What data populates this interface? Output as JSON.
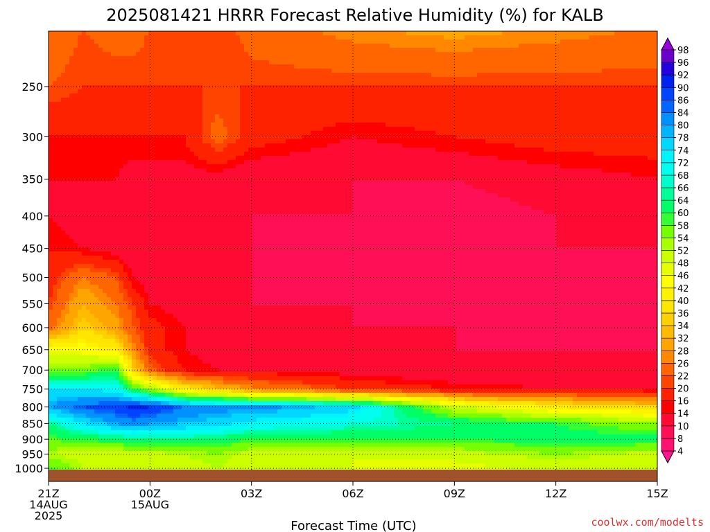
{
  "title": "2025081421 HRRR Forecast Relative Humidity (%) for KALB",
  "credit": "coolwx.com/modelts",
  "colors": {
    "credit": "#e2312d",
    "ground": "#a0522d"
  },
  "chart_data": {
    "type": "heatmap",
    "title": "2025081421 HRRR Forecast Relative Humidity (%) for KALB",
    "xlabel": "Forecast Time (UTC)",
    "ylabel": "",
    "y_scale": "log-pressure",
    "y_ticks": [
      250,
      300,
      350,
      400,
      450,
      500,
      550,
      600,
      650,
      700,
      750,
      800,
      850,
      900,
      950,
      1000
    ],
    "x_ticks": [
      {
        "hour": 0,
        "lines": [
          "21Z",
          "14AUG",
          "2025"
        ]
      },
      {
        "hour": 3,
        "lines": [
          "00Z",
          "15AUG"
        ]
      },
      {
        "hour": 6,
        "lines": [
          "03Z"
        ]
      },
      {
        "hour": 9,
        "lines": [
          "06Z"
        ]
      },
      {
        "hour": 12,
        "lines": [
          "09Z"
        ]
      },
      {
        "hour": 15,
        "lines": [
          "12Z"
        ]
      },
      {
        "hour": 18,
        "lines": [
          "15Z"
        ]
      }
    ],
    "grid": true,
    "legend": "colorbar-right",
    "colorbar_levels": [
      4,
      8,
      10,
      14,
      16,
      20,
      22,
      26,
      28,
      32,
      34,
      36,
      40,
      42,
      46,
      48,
      52,
      54,
      58,
      60,
      64,
      66,
      68,
      72,
      74,
      78,
      80,
      84,
      86,
      90,
      92,
      96,
      98
    ],
    "colorbar_colors": [
      "#ff1493",
      "#ff1170",
      "#ff0f55",
      "#ff0a33",
      "#ff0000",
      "#ff2200",
      "#ff4400",
      "#ff6600",
      "#ff8800",
      "#ffa500",
      "#ffbb00",
      "#ffd000",
      "#ffe600",
      "#fff200",
      "#ffff00",
      "#e6ff00",
      "#ccff00",
      "#aaff00",
      "#77ff00",
      "#33ff33",
      "#00ff66",
      "#00ff99",
      "#00ffcc",
      "#00ffee",
      "#00f5ff",
      "#00d8ff",
      "#00b5ff",
      "#0090ff",
      "#0066ff",
      "#0044ff",
      "#0022ee",
      "#2200dd",
      "#6a00cc",
      "#9a00dd"
    ],
    "column_hours": [
      0,
      1,
      2,
      2.5,
      3,
      4,
      5,
      6,
      9,
      12,
      15,
      18
    ],
    "level_pressures": [
      200,
      250,
      300,
      350,
      400,
      450,
      500,
      550,
      600,
      650,
      700,
      750,
      800,
      850,
      900,
      950,
      1000
    ],
    "rh_grid": [
      [
        26,
        22,
        24,
        24,
        22,
        22,
        20,
        24,
        28,
        30,
        28,
        26
      ],
      [
        22,
        20,
        20,
        20,
        20,
        20,
        20,
        20,
        20,
        20,
        20,
        20
      ],
      [
        16,
        16,
        16,
        16,
        16,
        16,
        24,
        18,
        14,
        16,
        18,
        18
      ],
      [
        14,
        14,
        14,
        12,
        12,
        12,
        12,
        10,
        10,
        10,
        12,
        14
      ],
      [
        14,
        12,
        10,
        10,
        10,
        10,
        10,
        10,
        10,
        8,
        10,
        10
      ],
      [
        16,
        14,
        12,
        10,
        10,
        10,
        10,
        10,
        8,
        8,
        10,
        10
      ],
      [
        18,
        26,
        22,
        14,
        12,
        10,
        10,
        10,
        8,
        8,
        8,
        10
      ],
      [
        20,
        32,
        26,
        20,
        14,
        12,
        12,
        10,
        10,
        8,
        8,
        10
      ],
      [
        24,
        36,
        30,
        22,
        18,
        14,
        12,
        10,
        10,
        10,
        8,
        10
      ],
      [
        44,
        44,
        40,
        28,
        18,
        14,
        12,
        10,
        10,
        10,
        10,
        10
      ],
      [
        56,
        56,
        60,
        36,
        24,
        16,
        14,
        14,
        12,
        10,
        10,
        10
      ],
      [
        74,
        74,
        72,
        60,
        54,
        40,
        34,
        28,
        20,
        16,
        14,
        14
      ],
      [
        80,
        86,
        88,
        92,
        90,
        84,
        82,
        82,
        76,
        50,
        40,
        36
      ],
      [
        64,
        74,
        80,
        82,
        80,
        78,
        76,
        72,
        68,
        64,
        60,
        54
      ],
      [
        58,
        60,
        62,
        64,
        64,
        64,
        62,
        60,
        60,
        60,
        62,
        62
      ],
      [
        52,
        50,
        48,
        50,
        50,
        52,
        54,
        50,
        48,
        50,
        54,
        50
      ],
      [
        60,
        52,
        50,
        48,
        48,
        50,
        52,
        50,
        48,
        46,
        50,
        48
      ]
    ]
  }
}
